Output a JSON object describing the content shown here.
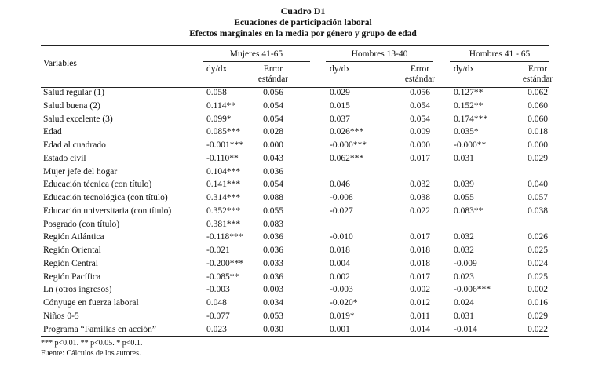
{
  "title": "Cuadro D1",
  "subtitle": "Ecuaciones de participación laboral",
  "subtitle2": "Efectos marginales en la media por género y grupo de edad",
  "table": {
    "variables_header": "Variables",
    "groups": [
      "Mujeres 41-65",
      "Hombres 13-40",
      "Hombres 41 - 65"
    ],
    "subheaders": [
      "dy/dx",
      "Error estándar",
      "dy/dx",
      "Error estándar",
      "dy/dx",
      "Error estándar"
    ],
    "rows": [
      [
        "Salud regular (1)",
        "0.058",
        "0.056",
        "0.029",
        "0.056",
        "0.127**",
        "0.062"
      ],
      [
        "Salud buena (2)",
        "0.114**",
        "0.054",
        "0.015",
        "0.054",
        "0.152**",
        "0.060"
      ],
      [
        "Salud excelente (3)",
        "0.099*",
        "0.054",
        "0.037",
        "0.054",
        "0.174***",
        "0.060"
      ],
      [
        "Edad",
        "0.085***",
        "0.028",
        "0.026***",
        "0.009",
        "0.035*",
        "0.018"
      ],
      [
        "Edad al cuadrado",
        "-0.001***",
        "0.000",
        "-0.000***",
        "0.000",
        "-0.000**",
        "0.000"
      ],
      [
        "Estado civil",
        "-0.110**",
        "0.043",
        "0.062***",
        "0.017",
        "0.031",
        "0.029"
      ],
      [
        "Mujer jefe del hogar",
        "0.104***",
        "0.036",
        null,
        null,
        null,
        null
      ],
      [
        "Educación técnica (con título)",
        "0.141***",
        "0.054",
        "0.046",
        "0.032",
        "0.039",
        "0.040"
      ],
      [
        "Educación tecnológica (con título)",
        "0.314***",
        "0.088",
        "-0.008",
        "0.038",
        "0.055",
        "0.057"
      ],
      [
        "Educación universitaria (con título)",
        "0.352***",
        "0.055",
        "-0.027",
        "0.022",
        "0.083**",
        "0.038"
      ],
      [
        "Posgrado (con título)",
        "0.381***",
        "0.083",
        null,
        null,
        null,
        null
      ],
      [
        "Región Atlántica",
        "-0.118***",
        "0.036",
        "-0.010",
        "0.017",
        "0.032",
        "0.026"
      ],
      [
        "Región Oriental",
        "-0.021",
        "0.036",
        "0.018",
        "0.018",
        "0.032",
        "0.025"
      ],
      [
        "Región Central",
        "-0.200***",
        "0.033",
        "0.004",
        "0.018",
        "-0.009",
        "0.024"
      ],
      [
        "Región Pacífica",
        "-0.085**",
        "0.036",
        "0.002",
        "0.017",
        "0.023",
        "0.025"
      ],
      [
        "Ln (otros ingresos)",
        "-0.003",
        "0.003",
        "-0.003",
        "0.002",
        "-0.006***",
        "0.002"
      ],
      [
        "Cónyuge en fuerza laboral",
        "0.048",
        "0.034",
        "-0.020*",
        "0.012",
        "0.024",
        "0.016"
      ],
      [
        "Niños 0-5",
        "-0.077",
        "0.053",
        "0.019*",
        "0.011",
        "0.031",
        "0.029"
      ],
      [
        "Programa “Familias en acción”",
        "0.023",
        "0.030",
        "0.001",
        "0.014",
        "-0.014",
        "0.022"
      ]
    ]
  },
  "notes": [
    "*** p<0.01. ** p<0.05. * p<0.1.",
    "Fuente: Cálculos de los autores."
  ]
}
